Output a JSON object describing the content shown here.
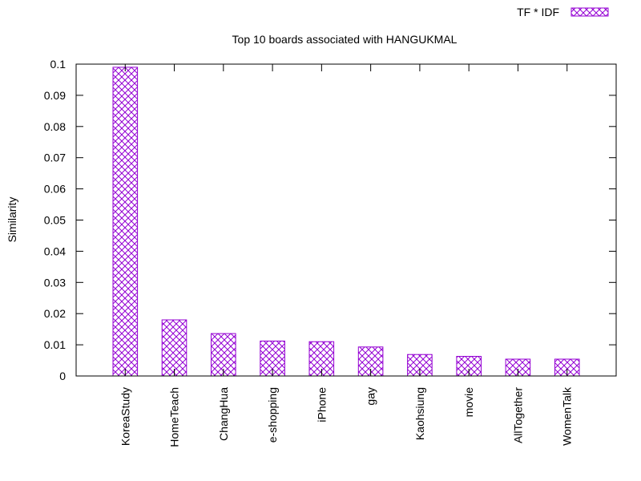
{
  "chart_data": {
    "type": "bar",
    "title": "Top 10 boards associated with HANGUKMAL",
    "xlabel": "",
    "ylabel": "Similarity",
    "ylim": [
      0,
      0.1
    ],
    "yticks": [
      "0",
      "0.01",
      "0.02",
      "0.03",
      "0.04",
      "0.05",
      "0.06",
      "0.07",
      "0.08",
      "0.09",
      "0.1"
    ],
    "categories": [
      "KoreaStudy",
      "HomeTeach",
      "ChangHua",
      "e-shopping",
      "iPhone",
      "gay",
      "Kaohsiung",
      "movie",
      "AllTogether",
      "WomenTalk"
    ],
    "series": [
      {
        "name": "TF * IDF",
        "values": [
          0.099,
          0.018,
          0.0136,
          0.0112,
          0.011,
          0.0093,
          0.0069,
          0.0063,
          0.0054,
          0.0054
        ]
      }
    ],
    "legend_position": "top-right",
    "grid": false,
    "bar_color": "#9400d3"
  }
}
